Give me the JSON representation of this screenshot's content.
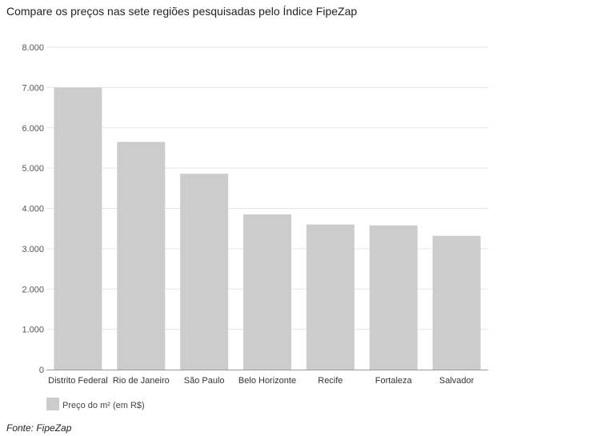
{
  "title": "Compare os preços nas sete regiões pesquisadas pelo Índice FipeZap",
  "source": "Fonte: FipeZap",
  "chart_data": {
    "type": "bar",
    "title": "Compare os preços nas sete regiões pesquisadas pelo Índice FipeZap",
    "categories": [
      "Distrito Federal",
      "Rio de Janeiro",
      "São Paulo",
      "Belo Horizonte",
      "Recife",
      "Fortaleza",
      "Salvador"
    ],
    "series": [
      {
        "name": "Preço do m² (em R$)",
        "values": [
          7000,
          5650,
          4860,
          3850,
          3600,
          3580,
          3320
        ],
        "color": "#cccccc"
      }
    ],
    "xlabel": "",
    "ylabel": "",
    "ylim": [
      0,
      8000
    ],
    "yticks": [
      0,
      1000,
      2000,
      3000,
      4000,
      5000,
      6000,
      7000,
      8000
    ],
    "ytick_labels": [
      "0",
      "1.000",
      "2.000",
      "3.000",
      "4.000",
      "5.000",
      "6.000",
      "7.000",
      "8.000"
    ],
    "grid": true,
    "legend": "bottom-left",
    "gridline_color": "#e6e6e6",
    "axis_color": "#999999"
  }
}
